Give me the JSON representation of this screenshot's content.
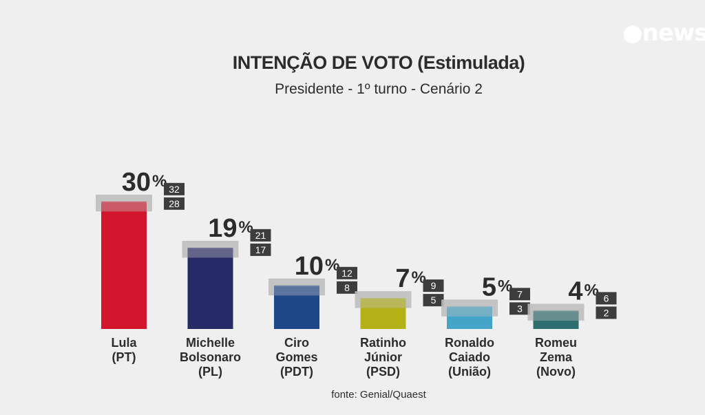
{
  "brand": {
    "logo_text": "●news"
  },
  "header": {
    "title": "INTENÇÃO DE VOTO (Estimulada)",
    "subtitle": "Presidente - 1º turno - Cenário 2"
  },
  "footer": {
    "source": "fonte: Genial/Quaest"
  },
  "chart_data": {
    "type": "bar",
    "title": "INTENÇÃO DE VOTO (Estimulada)",
    "subtitle": "Presidente - 1º turno - Cenário 2",
    "categories": [
      [
        "Lula",
        "(PT)"
      ],
      [
        "Michelle",
        "Bolsonaro",
        "(PL)"
      ],
      [
        "Ciro",
        "Gomes",
        "(PDT)"
      ],
      [
        "Ratinho",
        "Júnior",
        "(PSD)"
      ],
      [
        "Ronaldo",
        "Caiado",
        "(União)"
      ],
      [
        "Romeu",
        "Zema",
        "(Novo)"
      ]
    ],
    "values": [
      30,
      19,
      10,
      7,
      5,
      4
    ],
    "value_labels": [
      "30",
      "19",
      "10",
      "7",
      "5",
      "4"
    ],
    "unit": "%",
    "margin_upper": [
      "32",
      "21",
      "12",
      "9",
      "7",
      "6"
    ],
    "margin_lower": [
      "28",
      "17",
      "8",
      "5",
      "3",
      "2"
    ],
    "colors": [
      "#d2162d",
      "#262a66",
      "#1e4787",
      "#b5b219",
      "#45a5c9",
      "#2f6e6f"
    ],
    "margin_band_color": "#bdbdbd",
    "margin_box_color": "#3d3d3d",
    "ylim": [
      0,
      32
    ],
    "xlabel": "",
    "ylabel": "",
    "grid": false,
    "legend": "none",
    "source": "fonte: Genial/Quaest"
  }
}
